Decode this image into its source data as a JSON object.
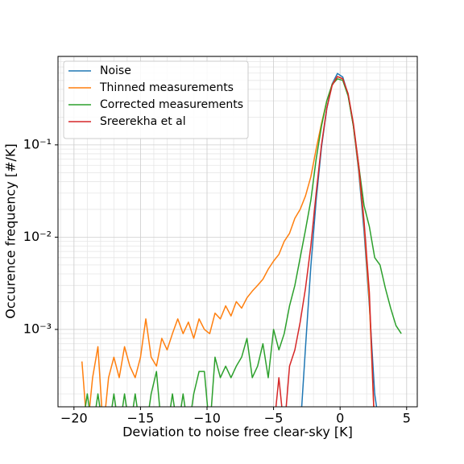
{
  "chart_data": {
    "type": "line",
    "xlabel": "Deviation to noise free clear-sky [K]",
    "ylabel": "Occurence frequency [#/K]",
    "log_y": true,
    "grid": true,
    "legend": "upper left",
    "xlim": [
      -21.2,
      5.8
    ],
    "ylim": [
      0.000145,
      0.91
    ],
    "xticks": [
      {
        "value": -20,
        "label": "−20"
      },
      {
        "value": -15,
        "label": "−15"
      },
      {
        "value": -10,
        "label": "−10"
      },
      {
        "value": -5,
        "label": "−5"
      },
      0,
      5
    ],
    "yticks": [
      {
        "value": 0.001,
        "label": "10⁻³"
      },
      {
        "value": 0.01,
        "label": "10⁻²"
      },
      {
        "value": 0.1,
        "label": "10⁻¹"
      }
    ],
    "x": [
      -19.4,
      -19,
      -18.6,
      -18.2,
      -17.8,
      -17.4,
      -17,
      -16.6,
      -16.2,
      -15.8,
      -15.4,
      -15,
      -14.6,
      -14.2,
      -13.8,
      -13.4,
      -13,
      -12.6,
      -12.2,
      -11.8,
      -11.4,
      -11,
      -10.6,
      -10.2,
      -9.8,
      -9.4,
      -9,
      -8.6,
      -8.2,
      -7.8,
      -7.4,
      -7,
      -6.6,
      -6.2,
      -5.8,
      -5.4,
      -5,
      -4.6,
      -4.2,
      -3.8,
      -3.4,
      -3,
      -2.6,
      -2.2,
      -1.8,
      -1.4,
      -1,
      -0.6,
      -0.2,
      0.2,
      0.6,
      1,
      1.4,
      1.8,
      2.2,
      2.6,
      3,
      3.4,
      3.8,
      4.2,
      4.6
    ],
    "series": [
      {
        "name": "Noise",
        "color": "#1f77b4",
        "values": [
          0,
          0,
          0,
          0,
          0,
          0,
          0,
          0,
          0,
          0,
          0,
          0,
          0,
          0,
          0,
          0,
          0,
          0,
          0,
          0,
          0,
          0,
          0,
          0,
          0,
          0,
          0,
          0,
          0,
          0,
          0,
          0,
          0,
          0,
          0,
          0,
          0,
          0,
          0,
          0,
          0,
          0,
          0.00064,
          0.0048,
          0.025,
          0.094,
          0.247,
          0.457,
          0.594,
          0.544,
          0.351,
          0.16,
          0.051,
          0.0116,
          0.0018,
          0.0002,
          0,
          0,
          0,
          0,
          0
        ]
      },
      {
        "name": "Thinned measurements",
        "color": "#ff7f0e",
        "values": [
          0.00045,
          0,
          0.0003,
          0.00065,
          0,
          0.0003,
          0.0005,
          0.0003,
          0.00065,
          0.0004,
          0.0003,
          0.0005,
          0.0013,
          0.0005,
          0.0004,
          0.0008,
          0.0006,
          0.0009,
          0.0013,
          0.0009,
          0.0012,
          0.0008,
          0.0013,
          0.001,
          0.0009,
          0.0015,
          0.0013,
          0.0018,
          0.0014,
          0.002,
          0.0017,
          0.0022,
          0.0026,
          0.003,
          0.0035,
          0.0045,
          0.0055,
          0.0065,
          0.009,
          0.011,
          0.016,
          0.02,
          0.028,
          0.045,
          0.09,
          0.17,
          0.3,
          0.45,
          0.55,
          0.52,
          0.35,
          0.16,
          0.055,
          0.014,
          0.002,
          0,
          0,
          0,
          0,
          0,
          0
        ]
      },
      {
        "name": "Corrected measurements",
        "color": "#2ca02c",
        "values": [
          0,
          0.0002,
          0,
          0.0002,
          0,
          0,
          0.0002,
          0,
          0.0002,
          0,
          0.0002,
          0,
          0,
          0.0002,
          0.00035,
          0,
          0,
          0.0002,
          0,
          0.0002,
          0,
          0.0002,
          0.00035,
          0.00035,
          0,
          0.0005,
          0.0003,
          0.0004,
          0.0003,
          0.0004,
          0.0005,
          0.0008,
          0.0003,
          0.0004,
          0.0007,
          0.0003,
          0.001,
          0.0006,
          0.0009,
          0.0018,
          0.003,
          0.006,
          0.012,
          0.025,
          0.07,
          0.16,
          0.3,
          0.45,
          0.52,
          0.5,
          0.34,
          0.16,
          0.06,
          0.022,
          0.013,
          0.006,
          0.005,
          0.0028,
          0.0017,
          0.0011,
          0.0009
        ]
      },
      {
        "name": "Sreerekha et al",
        "color": "#d62728",
        "values": [
          0,
          0,
          0,
          0,
          0,
          0,
          0,
          0,
          0,
          0,
          0,
          0,
          0,
          0,
          0,
          0,
          0,
          0,
          0,
          0,
          0,
          0,
          0,
          0,
          0,
          0,
          0,
          0,
          0,
          0,
          0,
          0,
          0,
          0,
          0,
          0,
          0,
          0.0003,
          0,
          0.0004,
          0.0006,
          0.0012,
          0.0028,
          0.008,
          0.03,
          0.1,
          0.25,
          0.44,
          0.55,
          0.52,
          0.36,
          0.17,
          0.06,
          0.015,
          0.0025,
          0,
          0,
          0,
          0,
          0,
          0
        ]
      }
    ]
  }
}
